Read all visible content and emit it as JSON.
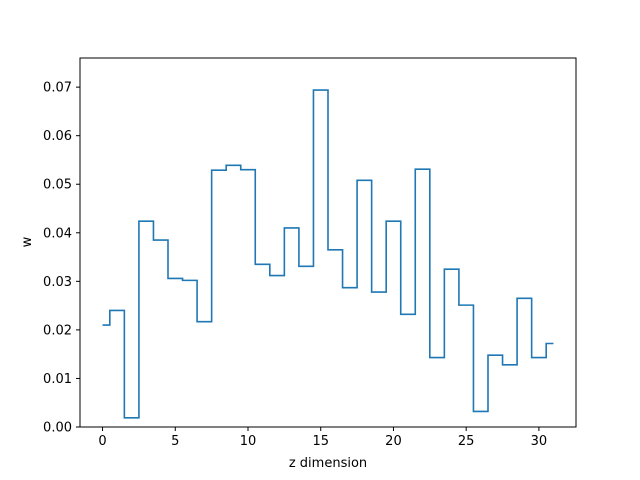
{
  "chart_data": {
    "type": "line",
    "drawstyle": "steps-mid",
    "xlabel": "z dimension",
    "ylabel": "w",
    "xlim": [
      -1.55,
      32.55
    ],
    "ylim": [
      0.0,
      0.076
    ],
    "xticks": [
      0,
      5,
      10,
      15,
      20,
      25,
      30
    ],
    "yticks": [
      0.0,
      0.01,
      0.02,
      0.03,
      0.04,
      0.05,
      0.06,
      0.07
    ],
    "ytick_labels": [
      "0.00",
      "0.01",
      "0.02",
      "0.03",
      "0.04",
      "0.05",
      "0.06",
      "0.07"
    ],
    "grid": false,
    "line_color": "#1f77b4",
    "series": [
      {
        "x": [
          0,
          1,
          2,
          3,
          4,
          5,
          6,
          7,
          8,
          9,
          10,
          11,
          12,
          13,
          14,
          15,
          16,
          17,
          18,
          19,
          20,
          21,
          22,
          23,
          24,
          25,
          26,
          27,
          28,
          29,
          30,
          31
        ],
        "values": [
          0.021,
          0.024,
          0.0019,
          0.0424,
          0.0385,
          0.0306,
          0.0302,
          0.0217,
          0.0529,
          0.0539,
          0.053,
          0.0335,
          0.0312,
          0.041,
          0.0331,
          0.0694,
          0.0365,
          0.0287,
          0.0508,
          0.0278,
          0.0424,
          0.0232,
          0.0531,
          0.0143,
          0.0325,
          0.0251,
          0.0032,
          0.0148,
          0.0128,
          0.0265,
          0.0143,
          0.0172
        ]
      }
    ]
  }
}
